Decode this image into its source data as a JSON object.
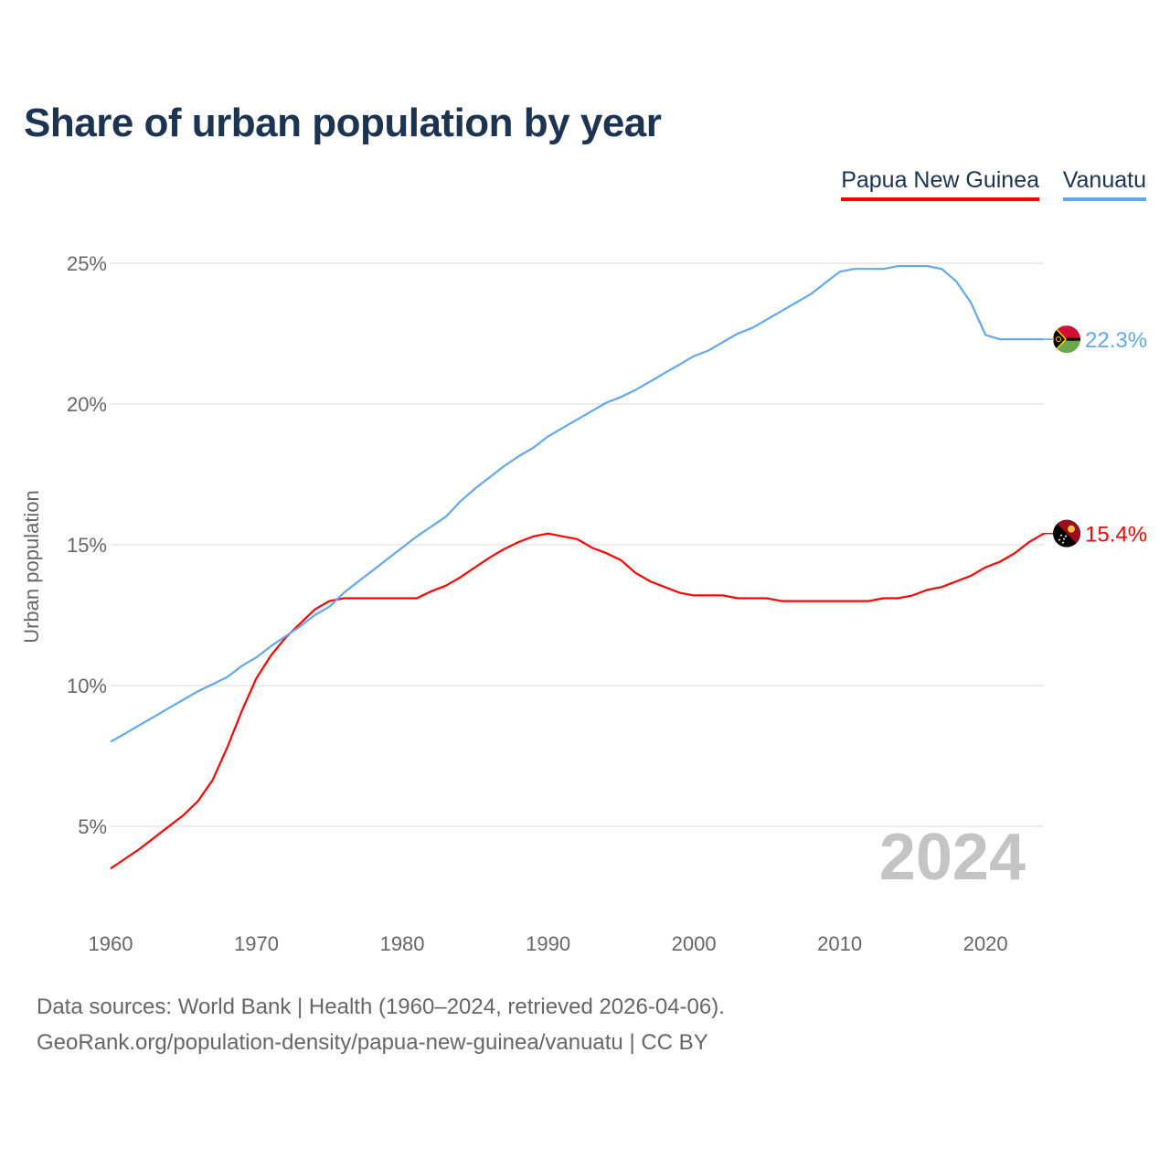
{
  "title": "Share of urban population by year",
  "footer": {
    "line1": "Data sources: World Bank | Health (1960–2024, retrieved 2026-04-06).",
    "line2": "GeoRank.org/population-density/papua-new-guinea/vanuatu | CC BY"
  },
  "chart_data": {
    "type": "line",
    "title": "Share of urban population by year",
    "xlabel": "",
    "ylabel": "Urban population",
    "xlim": [
      1960,
      2024
    ],
    "ylim": [
      2,
      27
    ],
    "yticks": [
      5,
      10,
      15,
      20,
      25
    ],
    "ytick_labels": [
      "5%",
      "10%",
      "15%",
      "20%",
      "25%"
    ],
    "xticks": [
      1960,
      1970,
      1980,
      1990,
      2000,
      2010,
      2020
    ],
    "xtick_labels": [
      "1960",
      "1970",
      "1980",
      "1990",
      "2000",
      "2010",
      "2020"
    ],
    "year_watermark": "2024",
    "grid": true,
    "legend_position": "top-right",
    "x": [
      1960,
      1961,
      1962,
      1963,
      1964,
      1965,
      1966,
      1967,
      1968,
      1969,
      1970,
      1971,
      1972,
      1973,
      1974,
      1975,
      1976,
      1977,
      1978,
      1979,
      1980,
      1981,
      1982,
      1983,
      1984,
      1985,
      1986,
      1987,
      1988,
      1989,
      1990,
      1991,
      1992,
      1993,
      1994,
      1995,
      1996,
      1997,
      1998,
      1999,
      2000,
      2001,
      2002,
      2003,
      2004,
      2005,
      2006,
      2007,
      2008,
      2009,
      2010,
      2011,
      2012,
      2013,
      2014,
      2015,
      2016,
      2017,
      2018,
      2019,
      2020,
      2021,
      2022,
      2023,
      2024
    ],
    "series": [
      {
        "name": "Papua New Guinea",
        "color": "#ff0000",
        "end_label": "15.4%",
        "flag": "papua-new-guinea-flag",
        "values": [
          3.5,
          3.85,
          4.2,
          4.6,
          5.0,
          5.4,
          5.9,
          6.65,
          7.8,
          9.1,
          10.26,
          11.07,
          11.7,
          12.2,
          12.7,
          13.0,
          13.1,
          13.1,
          13.1,
          13.1,
          13.1,
          13.1,
          13.35,
          13.55,
          13.85,
          14.2,
          14.55,
          14.85,
          15.1,
          15.3,
          15.4,
          15.3,
          15.2,
          14.9,
          14.7,
          14.45,
          14.0,
          13.7,
          13.5,
          13.3,
          13.2,
          13.2,
          13.2,
          13.1,
          13.1,
          13.1,
          13.0,
          13.0,
          13.0,
          13.0,
          13.0,
          13.0,
          13.0,
          13.1,
          13.1,
          13.2,
          13.4,
          13.5,
          13.7,
          13.9,
          14.2,
          14.4,
          14.7,
          15.1,
          15.4
        ]
      },
      {
        "name": "Vanuatu",
        "color": "#62a8ea",
        "end_label": "22.3%",
        "flag": "vanuatu-flag",
        "values": [
          8.0,
          8.3,
          8.6,
          8.9,
          9.2,
          9.5,
          9.8,
          10.05,
          10.3,
          10.7,
          11.0,
          11.4,
          11.75,
          12.1,
          12.5,
          12.8,
          13.3,
          13.7,
          14.1,
          14.5,
          14.9,
          15.3,
          15.65,
          16.0,
          16.55,
          17.0,
          17.4,
          17.8,
          18.15,
          18.45,
          18.85,
          19.15,
          19.45,
          19.75,
          20.05,
          20.25,
          20.5,
          20.8,
          21.1,
          21.4,
          21.7,
          21.9,
          22.2,
          22.5,
          22.7,
          23.0,
          23.3,
          23.6,
          23.9,
          24.3,
          24.7,
          24.8,
          24.8,
          24.8,
          24.9,
          24.9,
          24.9,
          24.8,
          24.35,
          23.6,
          22.45,
          22.3,
          22.3,
          22.3,
          22.3
        ]
      }
    ]
  }
}
